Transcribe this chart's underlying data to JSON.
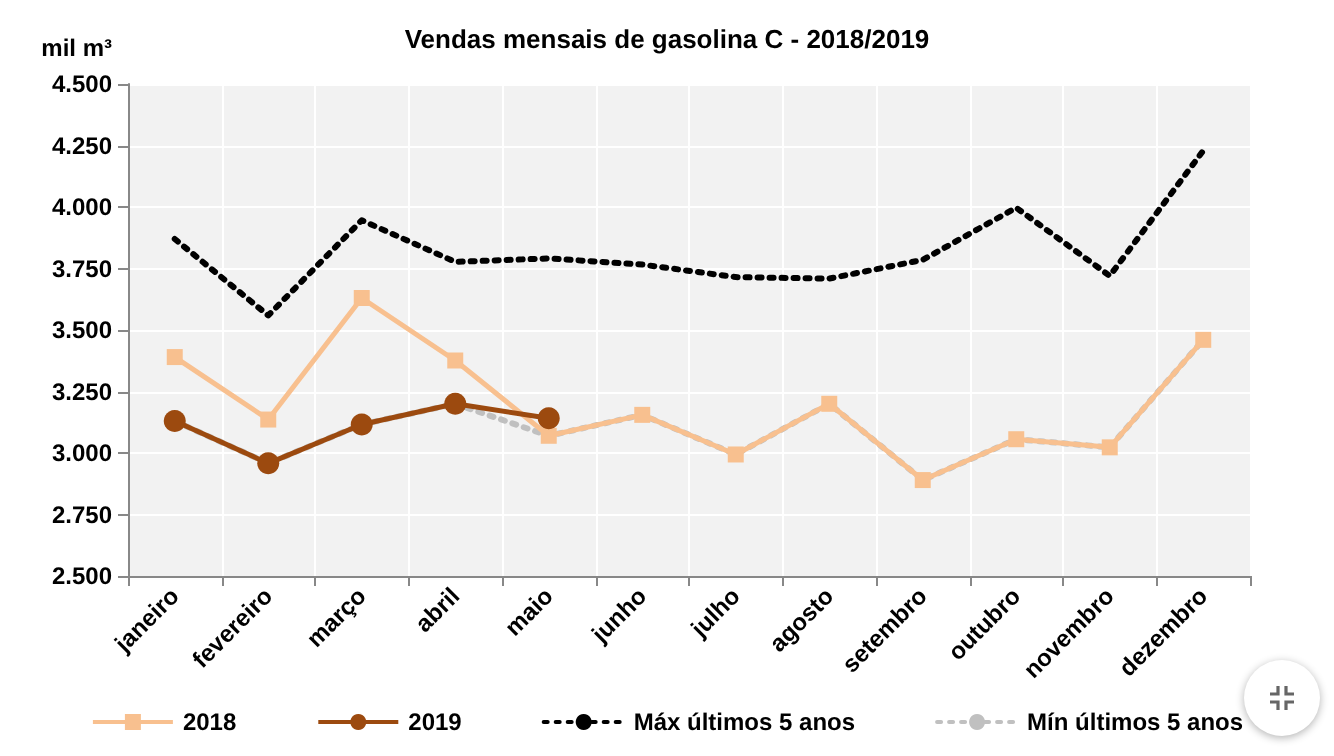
{
  "chart_data": {
    "type": "line",
    "title": "Vendas mensais de gasolina C - 2018/2019",
    "ylabel": "mil m³",
    "categories": [
      "janeiro",
      "fevereiro",
      "março",
      "abril",
      "maio",
      "junho",
      "julho",
      "agosto",
      "setembro",
      "outubro",
      "novembro",
      "dezembro"
    ],
    "series": [
      {
        "name": "2018",
        "color": "#f8c08f",
        "marker": "square",
        "line_style": "solid",
        "values": [
          3390,
          3136,
          3630,
          3376,
          3070,
          3155,
          2994,
          3200,
          2890,
          3056,
          3023,
          3460
        ]
      },
      {
        "name": "2019",
        "color": "#9c4a0f",
        "marker": "circle",
        "line_style": "solid",
        "values": [
          3130,
          2958,
          3116,
          3200,
          3141,
          null,
          null,
          null,
          null,
          null,
          null,
          null
        ]
      },
      {
        "name": "Máx últimos 5 anos",
        "color": "#000000",
        "marker": "none",
        "line_style": "dotted",
        "values": [
          3870,
          3559,
          3946,
          3777,
          3791,
          3766,
          3715,
          3709,
          3785,
          3997,
          3720,
          4229
        ]
      },
      {
        "name": "Mín últimos 5 anos",
        "color": "#c0c0c0",
        "marker": "none",
        "line_style": "dotted",
        "values": [
          3130,
          2958,
          3116,
          3200,
          3070,
          3155,
          2994,
          3200,
          2890,
          3056,
          3023,
          3460
        ]
      }
    ],
    "ylim": [
      2500,
      4500
    ],
    "yticks": [
      {
        "value": 2500,
        "label": "2.500"
      },
      {
        "value": 2750,
        "label": "2.750"
      },
      {
        "value": 3000,
        "label": "3.000"
      },
      {
        "value": 3250,
        "label": "3.250"
      },
      {
        "value": 3500,
        "label": "3.500"
      },
      {
        "value": 3750,
        "label": "3.750"
      },
      {
        "value": 4000,
        "label": "4.000"
      },
      {
        "value": 4250,
        "label": "4.250"
      },
      {
        "value": 4500,
        "label": "4.500"
      }
    ],
    "grid": true,
    "legend": "bottom"
  }
}
